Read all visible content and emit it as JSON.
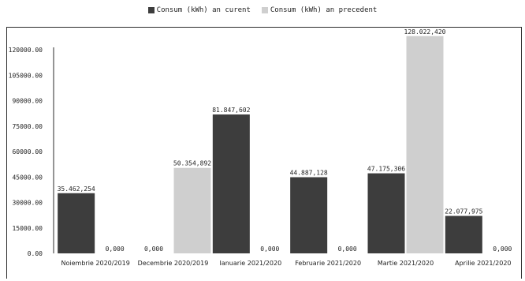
{
  "chart_data": {
    "type": "bar",
    "categories": [
      "Noiembrie 2020/2019",
      "Decembrie 2020/2019",
      "Ianuarie 2021/2020",
      "Februarie 2021/2020",
      "Martie 2021/2020",
      "Aprilie 2021/2020"
    ],
    "series": [
      {
        "name": "Consum (kWh) an curent",
        "values": [
          35462.254,
          0,
          81847.602,
          44887.128,
          47175.306,
          22077.975
        ],
        "labels": [
          "35.462,254",
          "0,000",
          "81.847,602",
          "44.887,128",
          "47.175,306",
          "22.077,975"
        ],
        "color": "#3d3d3d"
      },
      {
        "name": "Consum (kWh) an precedent",
        "values": [
          0,
          50354.892,
          0,
          0,
          128022.42,
          0
        ],
        "labels": [
          "0,000",
          "50.354,892",
          "0,000",
          "0,000",
          "128.022,420",
          "0,000"
        ],
        "color": "#cfcfcf"
      }
    ],
    "ylim": [
      0,
      135000
    ],
    "yticks": [
      0,
      15000,
      30000,
      45000,
      60000,
      75000,
      90000,
      105000,
      120000
    ],
    "ytick_labels": [
      "0.00",
      "15000.00",
      "30000.00",
      "45000.00",
      "60000.00",
      "75000.00",
      "90000.00",
      "105000.00",
      "120000.00"
    ],
    "grid": false,
    "legend_position": "top-center"
  }
}
